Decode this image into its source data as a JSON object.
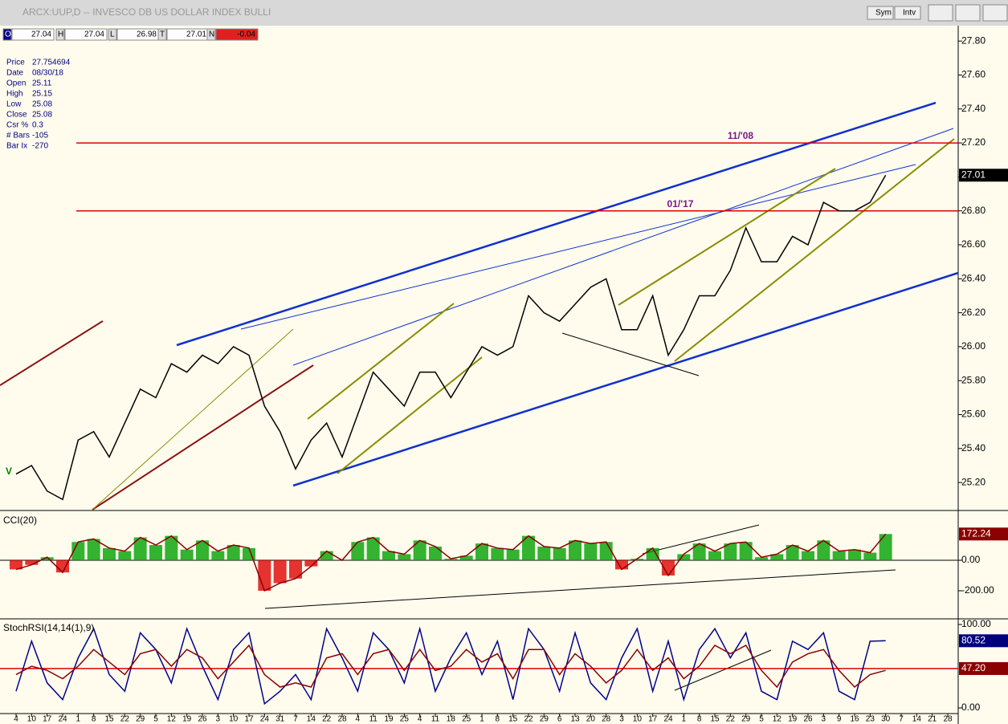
{
  "window": {
    "title": "ARCX:UUP,D -- INVESCO DB US DOLLAR INDEX BULLI",
    "buttons": [
      "Sym",
      "Intv"
    ]
  },
  "quote": [
    {
      "label": "O",
      "value": 27.04
    },
    {
      "label": "H",
      "value": 27.04
    },
    {
      "label": "L",
      "value": 26.98
    },
    {
      "label": "T",
      "value": 27.01
    },
    {
      "label": "N",
      "value": -0.04
    }
  ],
  "info": [
    {
      "label": "Price",
      "value": 27.754694
    },
    {
      "label": "Date",
      "value": "08/30/18"
    },
    {
      "label": "Open",
      "value": 25.11
    },
    {
      "label": "High",
      "value": 25.15
    },
    {
      "label": "Low",
      "value": 25.08
    },
    {
      "label": "Close",
      "value": 25.08
    },
    {
      "label": "Csr %",
      "value": 0.3
    },
    {
      "label": "# Bars",
      "value": -105
    },
    {
      "label": "Bar Ix",
      "value": -270
    }
  ],
  "chart_data": [
    {
      "type": "line",
      "marker": "V",
      "series": [
        {
          "color": "#000000",
          "values": [
            25.25,
            25.3,
            25.15,
            25.1,
            25.45,
            25.5,
            25.35,
            25.55,
            25.75,
            25.7,
            25.9,
            25.85,
            25.95,
            25.9,
            26.0,
            25.95,
            25.65,
            25.5,
            25.28,
            25.45,
            25.55,
            25.35,
            25.6,
            25.85,
            25.75,
            25.65,
            25.85,
            25.85,
            25.7,
            25.85,
            26.0,
            25.95,
            26.0,
            26.3,
            26.2,
            26.15,
            26.25,
            26.35,
            26.4,
            26.1,
            26.1,
            26.3,
            25.95,
            26.1,
            26.3,
            26.3,
            26.45,
            26.7,
            26.5,
            26.5,
            26.65,
            26.6,
            26.85,
            26.8,
            26.8,
            26.85,
            27.01,
            null,
            null,
            null,
            null
          ]
        }
      ],
      "levels": [
        {
          "value": 27.2,
          "label": "11/'08"
        },
        {
          "value": 26.8,
          "label": "01/'17"
        }
      ],
      "level_color": "#e00000",
      "ylim": [
        25.04,
        27.9
      ],
      "yticks": [
        {
          "value": 25.2,
          "label": "25.20"
        },
        {
          "value": 25.4,
          "label": "25.40"
        },
        {
          "value": 25.6,
          "label": "25.60"
        },
        {
          "value": 25.8,
          "label": "25.80"
        },
        {
          "value": 26.0,
          "label": "26.00"
        },
        {
          "value": 26.2,
          "label": "26.20"
        },
        {
          "value": 26.4,
          "label": "26.40"
        },
        {
          "value": 26.6,
          "label": "26.60"
        },
        {
          "value": 26.8,
          "label": "26.80"
        },
        {
          "value": 27.0,
          "label": "27.00"
        },
        {
          "value": 27.2,
          "label": "27.20"
        },
        {
          "value": 27.4,
          "label": "27.40"
        },
        {
          "value": 27.6,
          "label": "27.60"
        },
        {
          "value": 27.8,
          "label": "27.80"
        }
      ]
    },
    {
      "type": "histogram-line",
      "title": "CCI(20)",
      "pos_color": "#00a000",
      "neg_color": "#e00000",
      "series": [
        {
          "color": "#8b0000",
          "values": [
            -60,
            -30,
            20,
            -80,
            120,
            140,
            80,
            60,
            150,
            100,
            160,
            70,
            130,
            60,
            100,
            80,
            -200,
            -150,
            -120,
            -40,
            60,
            0,
            120,
            150,
            60,
            40,
            130,
            90,
            10,
            30,
            110,
            80,
            70,
            160,
            90,
            80,
            130,
            110,
            120,
            -60,
            10,
            80,
            -100,
            40,
            110,
            60,
            110,
            120,
            20,
            40,
            100,
            60,
            130,
            60,
            70,
            50,
            172.24,
            null,
            null,
            null,
            null
          ]
        }
      ],
      "ylim": [
        -379,
        316
      ],
      "yticks": [
        {
          "value": -200,
          "label": "-200.00"
        },
        {
          "value": 0,
          "label": "0.00"
        }
      ]
    },
    {
      "type": "line",
      "title": "StochRSI(14,14(1),9)",
      "categories": [
        "4",
        "10",
        "17",
        "24",
        "1",
        "8",
        "15",
        "22",
        "29",
        "5",
        "12",
        "19",
        "26",
        "3",
        "10",
        "17",
        "24",
        "31",
        "7",
        "14",
        "22",
        "28",
        "4",
        "11",
        "19",
        "25",
        "4",
        "11",
        "18",
        "25",
        "1",
        "8",
        "15",
        "22",
        "29",
        "6",
        "13",
        "20",
        "28",
        "3",
        "10",
        "17",
        "24",
        "1",
        "8",
        "15",
        "22",
        "29",
        "5",
        "12",
        "19",
        "26",
        "3",
        "9",
        "16",
        "23",
        "30",
        "7",
        "14",
        "21",
        "28"
      ],
      "series": [
        {
          "color": "#00008b",
          "values": [
            20,
            80,
            30,
            10,
            60,
            95,
            40,
            20,
            90,
            70,
            30,
            95,
            50,
            10,
            70,
            90,
            5,
            20,
            40,
            10,
            95,
            60,
            20,
            90,
            70,
            30,
            95,
            20,
            60,
            90,
            40,
            80,
            10,
            95,
            70,
            20,
            90,
            30,
            10,
            60,
            95,
            20,
            80,
            10,
            70,
            95,
            60,
            90,
            20,
            10,
            80,
            70,
            90,
            20,
            10,
            80,
            80.52,
            null,
            null,
            null,
            null
          ]
        },
        {
          "color": "#8b0000",
          "values": [
            40,
            50,
            45,
            35,
            50,
            70,
            55,
            40,
            65,
            70,
            50,
            70,
            60,
            35,
            55,
            75,
            40,
            25,
            30,
            25,
            60,
            65,
            40,
            65,
            70,
            45,
            70,
            45,
            50,
            70,
            55,
            65,
            35,
            70,
            70,
            40,
            65,
            50,
            30,
            45,
            70,
            45,
            60,
            35,
            50,
            75,
            65,
            75,
            45,
            25,
            55,
            65,
            70,
            45,
            25,
            40,
            45,
            null,
            null,
            null,
            null
          ]
        }
      ],
      "levels": [
        {
          "value": 47.2,
          "label": "47.20"
        }
      ],
      "level_color": "#e00000",
      "ylim": [
        -7.7,
        105.8
      ],
      "yticks": [
        {
          "value": 0,
          "label": "0.00"
        },
        {
          "value": 100,
          "label": "100.00"
        }
      ]
    }
  ]
}
